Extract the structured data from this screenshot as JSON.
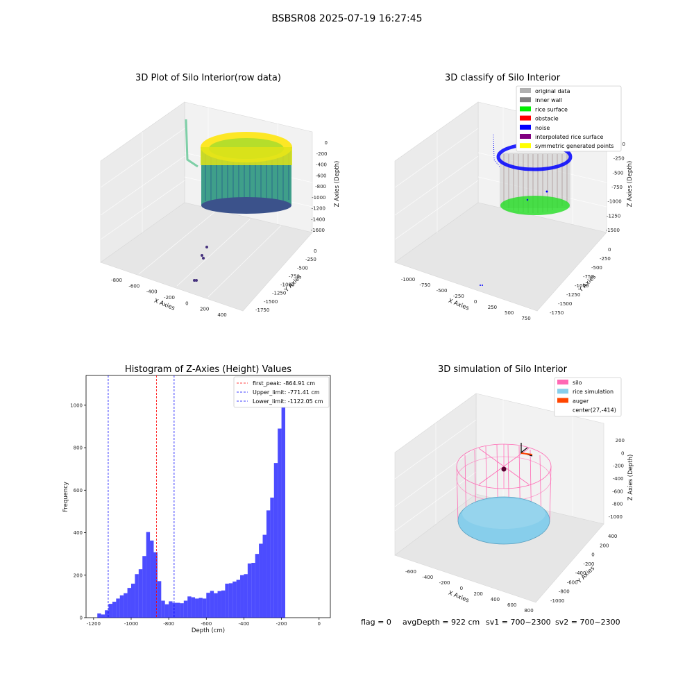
{
  "suptitle": "BSBSR08 2025-07-19 16:27:45",
  "panels": {
    "raw": {
      "title": "3D Plot of Silo Interior(row data)",
      "x_label": "X Axies",
      "y_label": "Y Axies",
      "z_label": "Z Axies (Depth)",
      "x_ticks": [
        "-800",
        "-600",
        "-400",
        "-200",
        "0",
        "200",
        "400"
      ],
      "y_ticks": [
        "0",
        "-250",
        "-500",
        "-750",
        "-1000",
        "-1250",
        "-1500",
        "-1750"
      ],
      "z_ticks": [
        "0",
        "-200",
        "-400",
        "-600",
        "-800",
        "-1000",
        "-1200",
        "-1400",
        "-1600"
      ]
    },
    "classify": {
      "title": "3D classify of Silo Interior",
      "x_label": "X Axies",
      "y_label": "Y Axies",
      "z_label": "Z Axies (Depth)",
      "x_ticks": [
        "-1000",
        "-750",
        "-500",
        "-250",
        "0",
        "250",
        "500",
        "750"
      ],
      "y_ticks": [
        "0",
        "-250",
        "-500",
        "-750",
        "-1000",
        "-1250",
        "-1500",
        "-1750"
      ],
      "z_ticks": [
        "0",
        "-250",
        "-500",
        "-750",
        "-1000",
        "-1250",
        "-1500"
      ],
      "legend": [
        {
          "label": "original data",
          "color": "#b0b0b0"
        },
        {
          "label": "inner wall",
          "color": "#808080"
        },
        {
          "label": "rice surface",
          "color": "#00ee00"
        },
        {
          "label": "obstacle",
          "color": "#ff0000"
        },
        {
          "label": "noise",
          "color": "#0000ff"
        },
        {
          "label": "interpolated rice surface",
          "color": "#800080"
        },
        {
          "label": "symmetric generated points",
          "color": "#ffff00"
        }
      ]
    },
    "simulation": {
      "title": "3D simulation of Silo Interior",
      "x_label": "X Axies",
      "y_label": "Y Axies",
      "z_label": "Z Axies (Depth)",
      "x_ticks": [
        "-600",
        "-400",
        "-200",
        "0",
        "200",
        "400",
        "600",
        "800"
      ],
      "y_ticks": [
        "400",
        "200",
        "0",
        "-200",
        "-400",
        "-600",
        "-800",
        "-1000"
      ],
      "z_ticks": [
        "200",
        "0",
        "-200",
        "-400",
        "-600",
        "-800",
        "-1000"
      ],
      "legend": [
        {
          "label": "silo",
          "color": "#ff69b4"
        },
        {
          "label": "rice simulation",
          "color": "#87ceeb"
        },
        {
          "label": "auger",
          "color": "#ff4500"
        },
        {
          "label": "center(27,-414)",
          "color": ""
        }
      ]
    }
  },
  "status": {
    "flag": "flag = 0",
    "avg_depth": "avgDepth = 922 cm",
    "sv1": "sv1 = 700~2300",
    "sv2": "sv2 = 700~2300"
  },
  "chart_data": [
    {
      "type": "bar",
      "title": "Histogram of Z-Axies (Height) Values",
      "xlabel": "Depth (cm)",
      "ylabel": "Frequency",
      "bar_color": "#0000ff",
      "bin_width": 20,
      "xlim": [
        -1240,
        60
      ],
      "ylim": [
        0,
        1140
      ],
      "x_ticks": [
        -1200,
        -1000,
        -800,
        -600,
        -400,
        -200,
        0
      ],
      "y_ticks": [
        0,
        200,
        400,
        600,
        800,
        1000
      ],
      "bins": [
        {
          "start": -1180,
          "value": 20
        },
        {
          "start": -1160,
          "value": 15
        },
        {
          "start": -1140,
          "value": 35
        },
        {
          "start": -1120,
          "value": 65
        },
        {
          "start": -1100,
          "value": 75
        },
        {
          "start": -1080,
          "value": 90
        },
        {
          "start": -1060,
          "value": 105
        },
        {
          "start": -1040,
          "value": 115
        },
        {
          "start": -1020,
          "value": 140
        },
        {
          "start": -1000,
          "value": 160
        },
        {
          "start": -980,
          "value": 205
        },
        {
          "start": -960,
          "value": 228
        },
        {
          "start": -940,
          "value": 290
        },
        {
          "start": -920,
          "value": 403
        },
        {
          "start": -900,
          "value": 363
        },
        {
          "start": -880,
          "value": 308
        },
        {
          "start": -860,
          "value": 172
        },
        {
          "start": -840,
          "value": 80
        },
        {
          "start": -820,
          "value": 63
        },
        {
          "start": -800,
          "value": 77
        },
        {
          "start": -780,
          "value": 70
        },
        {
          "start": -760,
          "value": 70
        },
        {
          "start": -740,
          "value": 68
        },
        {
          "start": -720,
          "value": 80
        },
        {
          "start": -700,
          "value": 100
        },
        {
          "start": -680,
          "value": 96
        },
        {
          "start": -660,
          "value": 90
        },
        {
          "start": -640,
          "value": 93
        },
        {
          "start": -620,
          "value": 90
        },
        {
          "start": -600,
          "value": 117
        },
        {
          "start": -580,
          "value": 126
        },
        {
          "start": -560,
          "value": 115
        },
        {
          "start": -540,
          "value": 125
        },
        {
          "start": -520,
          "value": 128
        },
        {
          "start": -500,
          "value": 160
        },
        {
          "start": -480,
          "value": 162
        },
        {
          "start": -460,
          "value": 170
        },
        {
          "start": -440,
          "value": 178
        },
        {
          "start": -420,
          "value": 200
        },
        {
          "start": -400,
          "value": 205
        },
        {
          "start": -380,
          "value": 255
        },
        {
          "start": -360,
          "value": 258
        },
        {
          "start": -340,
          "value": 300
        },
        {
          "start": -320,
          "value": 348
        },
        {
          "start": -300,
          "value": 390
        },
        {
          "start": -280,
          "value": 505
        },
        {
          "start": -260,
          "value": 565
        },
        {
          "start": -240,
          "value": 728
        },
        {
          "start": -220,
          "value": 890
        },
        {
          "start": -200,
          "value": 1090
        }
      ],
      "vlines": [
        {
          "x": -864.91,
          "color": "#ff0000",
          "label": "first_peak: -864.91 cm"
        },
        {
          "x": -771.41,
          "color": "#0000ff",
          "label": "Upper_limit: -771.41 cm"
        },
        {
          "x": -1122.05,
          "color": "#0000ff",
          "label": "Lower_limit: -1122.05 cm"
        }
      ]
    }
  ]
}
